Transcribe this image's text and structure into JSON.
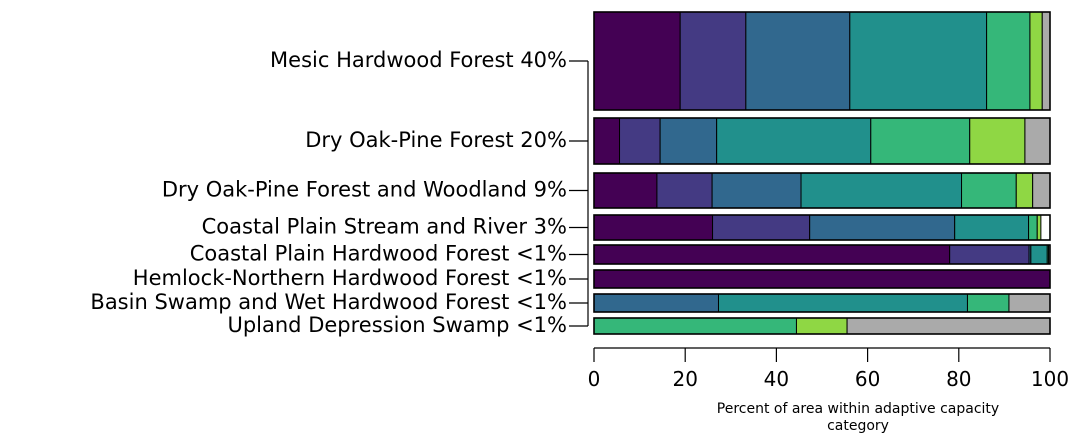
{
  "chart_data": {
    "type": "bar",
    "orientation": "horizontal",
    "stacked": true,
    "categories": [
      "Mesic Hardwood Forest 40%",
      "Dry Oak-Pine Forest 20%",
      "Dry Oak-Pine Forest and Woodland 9%",
      "Coastal Plain Stream and River 3%",
      "Coastal Plain Hardwood Forest <1%",
      "Hemlock-Northern Hardwood Forest <1%",
      "Basin Swamp and Wet Hardwood Forest <1%",
      "Upland Depression Swamp <1%"
    ],
    "relative_bar_heights": [
      40,
      20,
      9,
      3,
      1,
      1,
      1,
      1
    ],
    "segment_colors": [
      "#440154",
      "#443a83",
      "#31688e",
      "#21908c",
      "#35b779",
      "#8fd744",
      "#aaaaaa"
    ],
    "series": [
      {
        "values": [
          18.9,
          5.6,
          13.8,
          26.0,
          78.0,
          100,
          0,
          0
        ]
      },
      {
        "values": [
          14.4,
          8.9,
          12.1,
          21.3,
          17.4,
          0,
          0,
          0
        ]
      },
      {
        "values": [
          22.8,
          12.4,
          19.5,
          31.8,
          0.4,
          0,
          27.3,
          0
        ]
      },
      {
        "values": [
          30.0,
          33.8,
          35.2,
          16.2,
          3.6,
          0,
          54.6,
          0
        ]
      },
      {
        "values": [
          9.5,
          21.7,
          12.0,
          1.9,
          0.3,
          0,
          9.1,
          44.4
        ]
      },
      {
        "values": [
          2.7,
          12.1,
          3.6,
          0.8,
          0,
          0,
          0,
          11.1
        ]
      },
      {
        "values": [
          1.7,
          5.5,
          3.8,
          0,
          0.3,
          0,
          9.0,
          44.5
        ]
      }
    ],
    "xlim": [
      0,
      100
    ],
    "xticks": [
      "0",
      "20",
      "40",
      "60",
      "80",
      "100"
    ],
    "xlabel_lines": [
      "Percent of area within adaptive capacity",
      "category"
    ],
    "ylabel": "",
    "title": "",
    "legend": "none",
    "grid": false
  }
}
